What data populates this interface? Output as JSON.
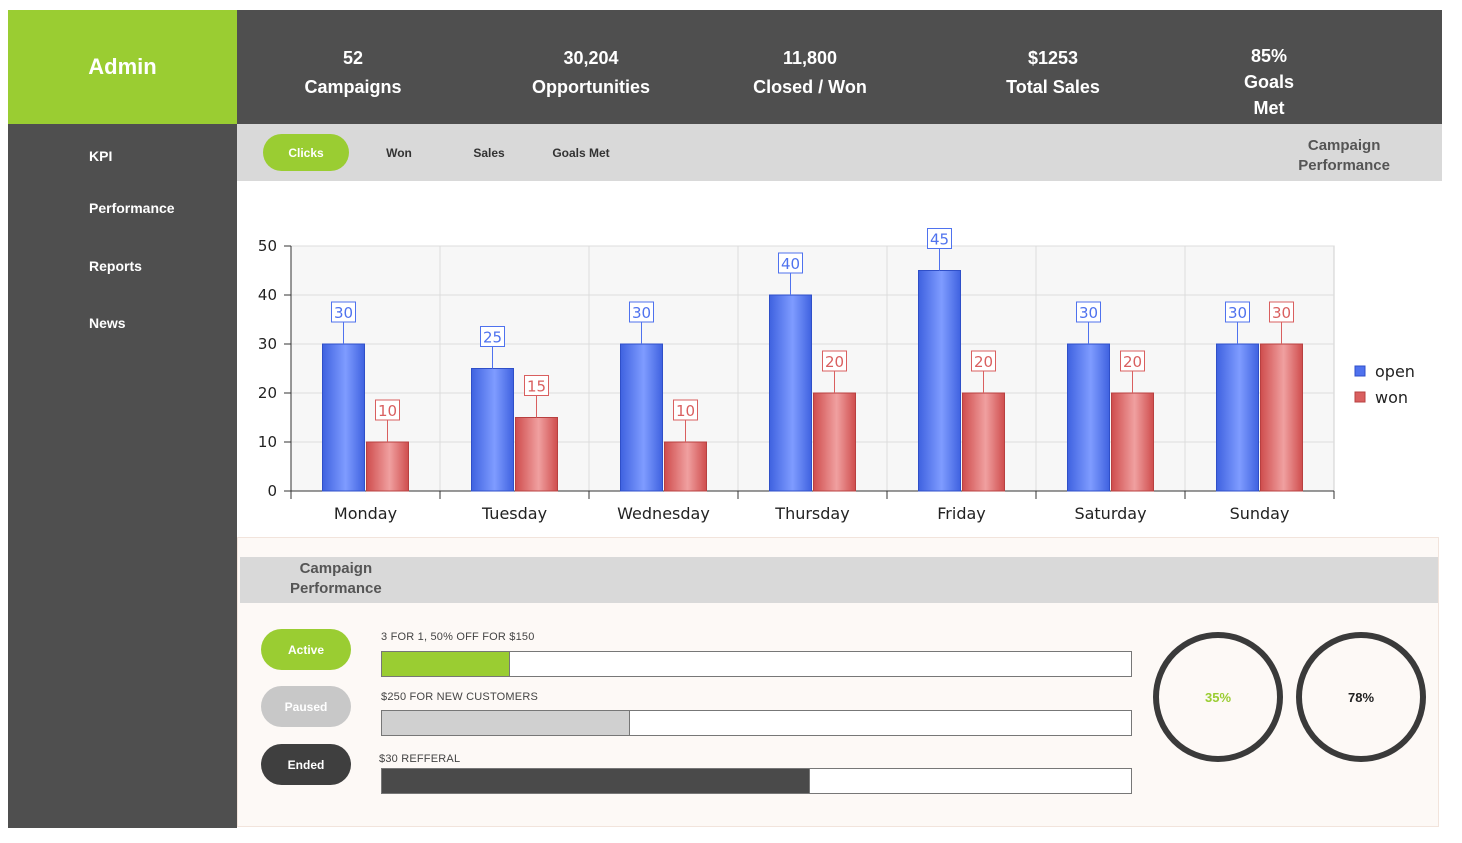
{
  "sidebar": {
    "brand": "Admin",
    "items": [
      {
        "label": "KPI"
      },
      {
        "label": "Performance"
      },
      {
        "label": "Reports"
      },
      {
        "label": "News"
      }
    ]
  },
  "stats": [
    {
      "value": "52",
      "label": "Campaigns"
    },
    {
      "value": "30,204",
      "label": "Opportunities"
    },
    {
      "value": "11,800",
      "label": "Closed / Won"
    },
    {
      "value": "$1253",
      "label": "Total Sales"
    },
    {
      "value": "85%",
      "label": "Goals",
      "label2": "Met"
    }
  ],
  "tabs": {
    "items": [
      {
        "label": "Clicks",
        "active": true
      },
      {
        "label": "Won",
        "active": false
      },
      {
        "label": "Sales",
        "active": false
      },
      {
        "label": "Goals Met",
        "active": false
      }
    ],
    "title_line1": "Campaign",
    "title_line2": "Performance"
  },
  "chart_data": {
    "type": "bar",
    "categories": [
      "Monday",
      "Tuesday",
      "Wednesday",
      "Thursday",
      "Friday",
      "Saturday",
      "Sunday"
    ],
    "series": [
      {
        "name": "open",
        "color": "#4f72ee",
        "values": [
          30,
          25,
          30,
          40,
          45,
          30,
          30
        ]
      },
      {
        "name": "won",
        "color": "#d95f5f",
        "values": [
          10,
          15,
          10,
          20,
          20,
          20,
          30
        ]
      }
    ],
    "yticks": [
      0,
      10,
      20,
      30,
      40,
      50
    ],
    "ylim": [
      0,
      50
    ],
    "grid": true,
    "legend": "right"
  },
  "campaign": {
    "title_line1": "Campaign",
    "title_line2": "Performance",
    "statuses": [
      {
        "label": "Active",
        "color": "#9acd32"
      },
      {
        "label": "Paused",
        "color": "#c8c8c8"
      },
      {
        "label": "Ended",
        "color": "#3f3f3f"
      }
    ],
    "offers": [
      {
        "label": "3 FOR 1, 50% OFF FOR $150",
        "progress": 0.17,
        "color": "#9acd32"
      },
      {
        "label": "$250 FOR NEW CUSTOMERS",
        "progress": 0.33,
        "color": "#d0d0d0"
      },
      {
        "label": "$30 REFFERAL",
        "progress": 0.57,
        "color": "#4a4a4a"
      }
    ],
    "rings": [
      {
        "value": "35%",
        "color": "#9acd32"
      },
      {
        "value": "78%",
        "color": "#222222"
      }
    ]
  }
}
